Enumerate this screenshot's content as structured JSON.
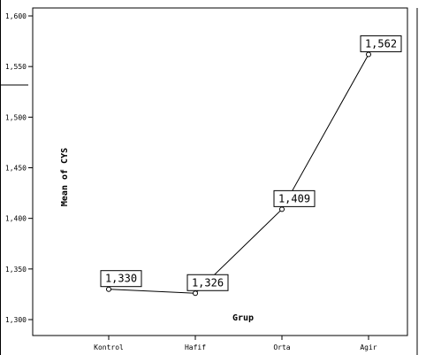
{
  "chart_data": {
    "type": "line",
    "categories": [
      "Kontrol",
      "Hafif",
      "Orta",
      "Agir"
    ],
    "values": [
      1.33,
      1.326,
      1.409,
      1.562
    ],
    "data_labels": [
      "1,330",
      "1,326",
      "1,409",
      "1,562"
    ],
    "xlabel": "Grup",
    "ylabel": "Mean of CYS",
    "ylim": [
      1.3,
      1.6
    ],
    "y_ticks": [
      {
        "value": 1.3,
        "label": "1,300"
      },
      {
        "value": 1.35,
        "label": "1,350"
      },
      {
        "value": 1.4,
        "label": "1,400"
      },
      {
        "value": 1.45,
        "label": "1,450"
      },
      {
        "value": 1.5,
        "label": "1,500"
      },
      {
        "value": 1.55,
        "label": "1,550"
      },
      {
        "value": 1.6,
        "label": "1,600"
      }
    ],
    "grid": false,
    "legend": "none",
    "line_color": "#000000"
  }
}
